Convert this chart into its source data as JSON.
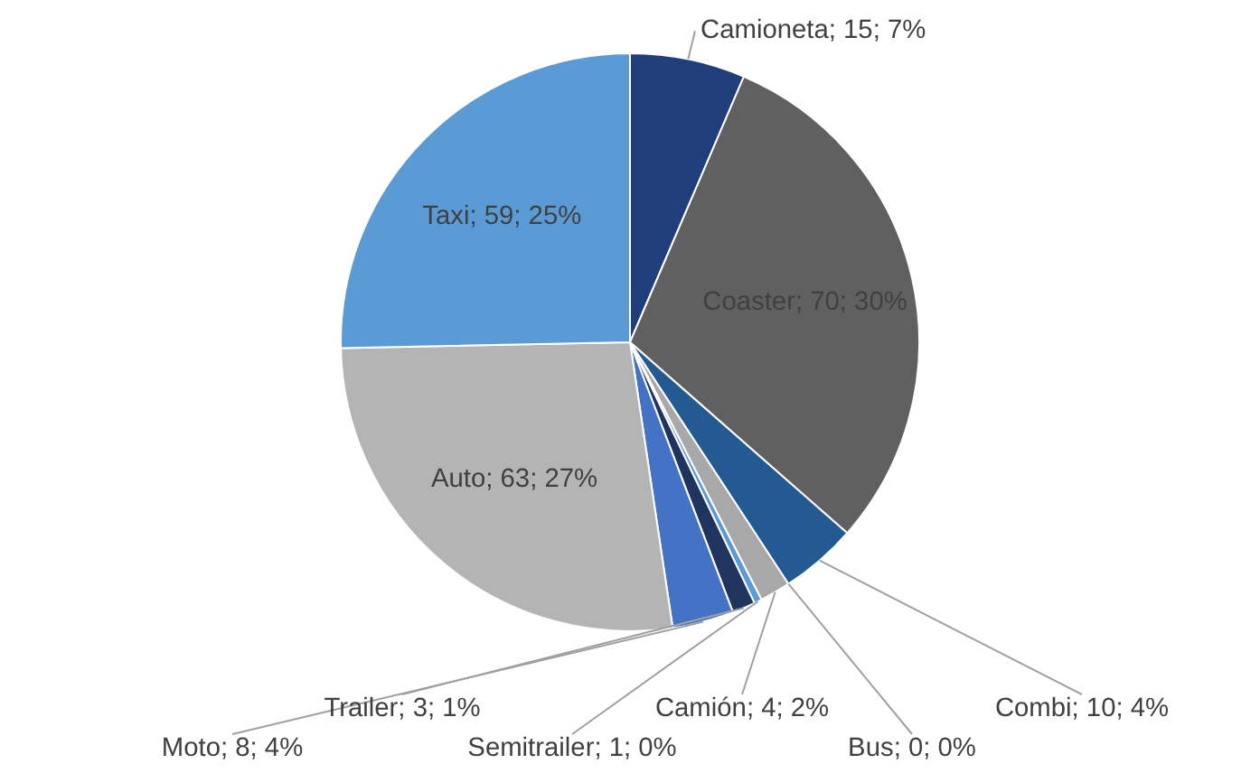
{
  "chart_data": {
    "type": "pie",
    "categories": [
      "Camioneta",
      "Coaster",
      "Combi",
      "Bus",
      "Camión",
      "Semitrailer",
      "Trailer",
      "Moto",
      "Auto",
      "Taxi"
    ],
    "values": [
      15,
      70,
      10,
      0,
      4,
      1,
      3,
      8,
      63,
      59
    ],
    "value_labels": [
      "; 15; 7%",
      "; 70; 30%",
      "; 10; 4%",
      "; 0; 0%",
      "; 4; 2%",
      "; 1; 0%",
      "; 3; 1%",
      "; 8; 4%",
      "; 63; 27%",
      "; 59; 25%"
    ],
    "colors": [
      "#203f7a",
      "#606060",
      "#245a92",
      "#9dc3e6",
      "#a8a8a8",
      "#5b9bd5",
      "#1f3560",
      "#4472c4",
      "#b4b4b4",
      "#5b9bd5"
    ]
  }
}
